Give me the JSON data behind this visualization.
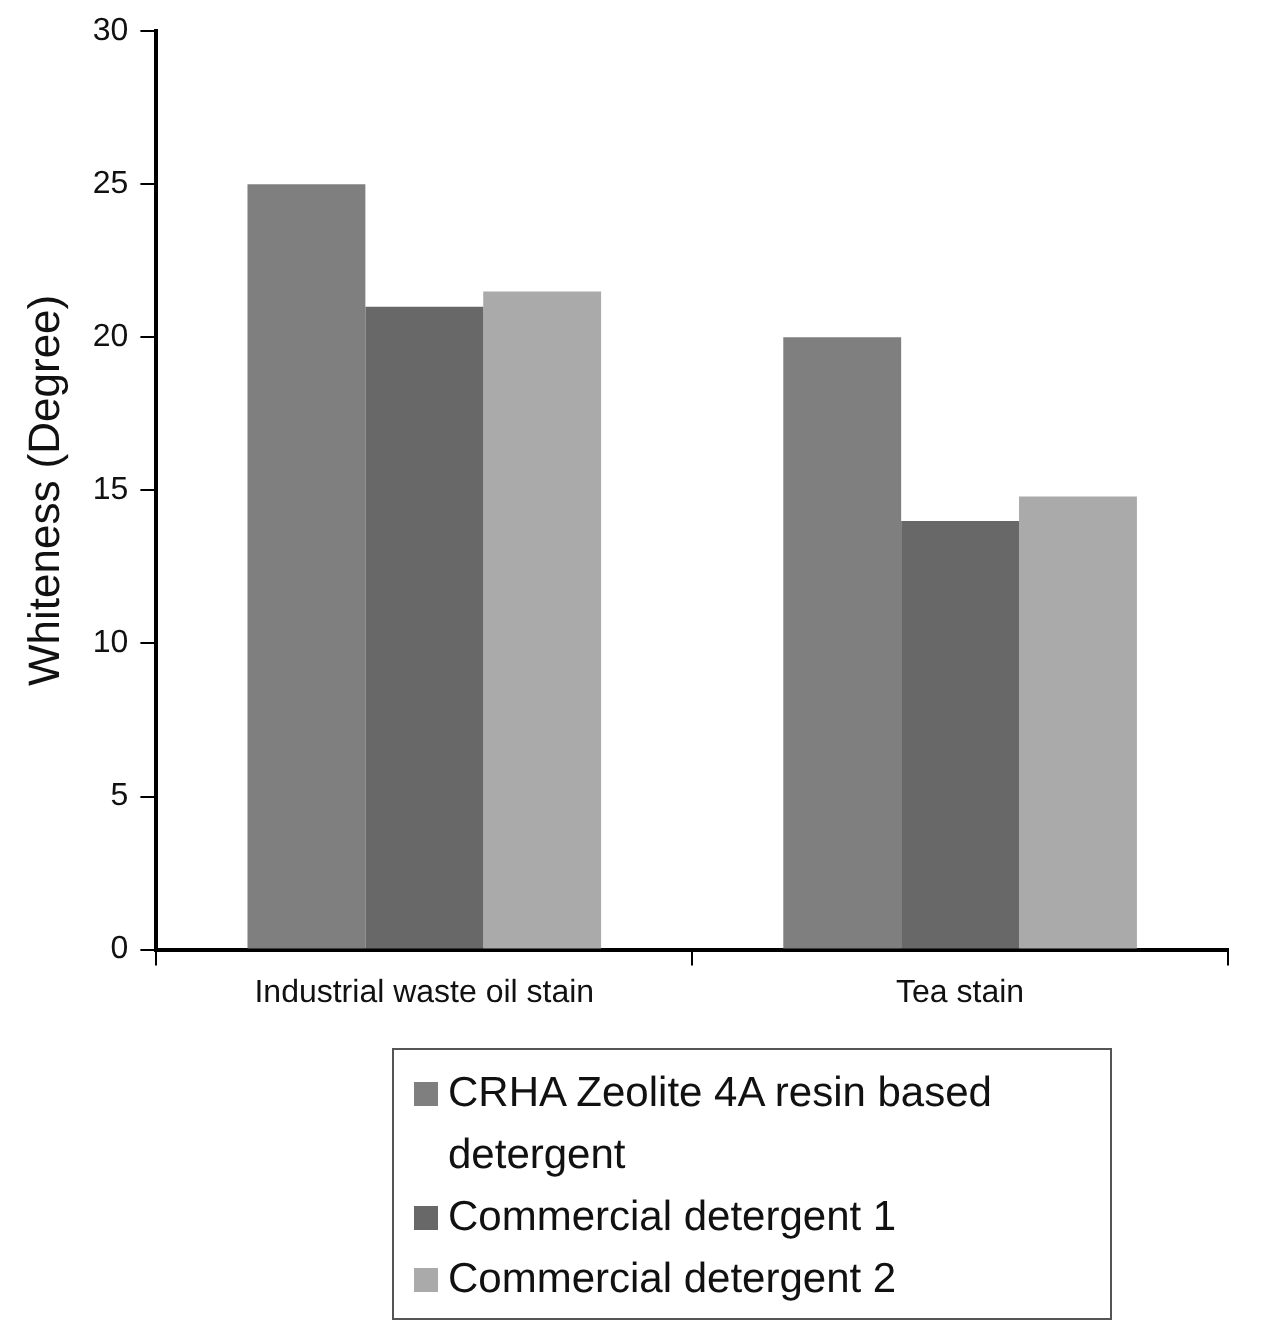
{
  "chart_data": {
    "type": "bar",
    "ylabel": "Whiteness (Degree)",
    "categories": [
      "Industrial waste oil stain",
      "Tea stain"
    ],
    "series": [
      {
        "name": "CRHA Zeolite 4A resin based detergent",
        "color": "#7f7f7f",
        "values": [
          25,
          20
        ]
      },
      {
        "name": "Commercial detergent 1",
        "color": "#686868",
        "values": [
          21,
          14
        ]
      },
      {
        "name": "Commercial detergent 2",
        "color": "#aaaaaa",
        "values": [
          21.5,
          14.8
        ]
      }
    ],
    "ylim": [
      0,
      30
    ],
    "yticks": [
      0,
      5,
      10,
      15,
      20,
      25,
      30
    ],
    "grid": false,
    "legend": "bottom"
  }
}
